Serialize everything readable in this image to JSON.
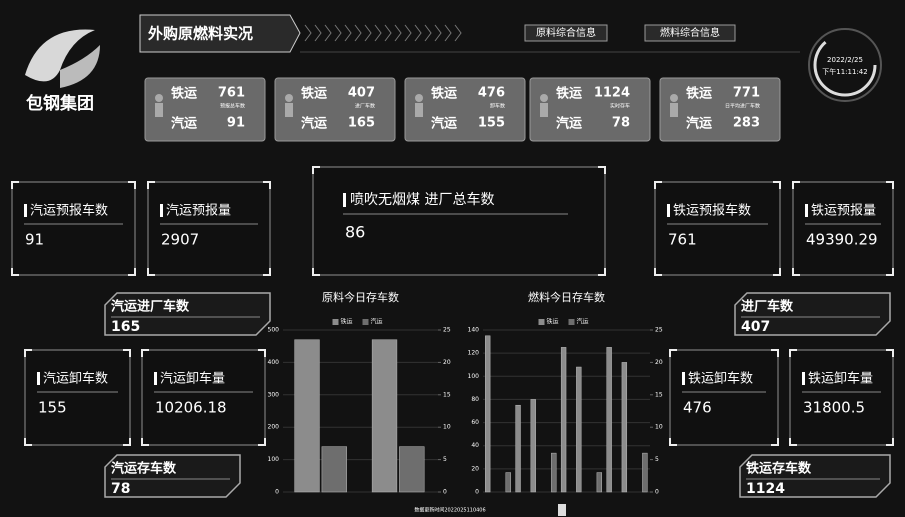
{
  "header": {
    "logo_text": "包钢集团",
    "title": "外购原燃料实况",
    "tabs": [
      "原料综合信息",
      "燃料综合信息"
    ],
    "date": "2022/2/25",
    "time": "下午11:11:42"
  },
  "summary_cards": [
    {
      "rail_label": "铁运",
      "rail_value": 761,
      "caption": "预报总车数",
      "truck_label": "汽运",
      "truck_value": 91
    },
    {
      "rail_label": "铁运",
      "rail_value": 407,
      "caption": "进厂车数",
      "truck_label": "汽运",
      "truck_value": 165
    },
    {
      "rail_label": "铁运",
      "rail_value": 476,
      "caption": "卸车数",
      "truck_label": "汽运",
      "truck_value": 155
    },
    {
      "rail_label": "铁运",
      "rail_value": 1124,
      "caption": "实时存车",
      "truck_label": "汽运",
      "truck_value": 78
    },
    {
      "rail_label": "铁运",
      "rail_value": 771,
      "caption": "日平均进厂车数",
      "truck_label": "汽运",
      "truck_value": 283
    }
  ],
  "panels": [
    {
      "label": "汽运预报车数",
      "value": 91
    },
    {
      "label": "汽运预报量",
      "value": 2907
    },
    {
      "label": "铁运预报车数",
      "value": 761
    },
    {
      "label": "铁运预报量",
      "value": 49390.29
    },
    {
      "label": "汽运卸车数",
      "value": 155
    },
    {
      "label": "汽运卸车量",
      "value": 10206.18
    },
    {
      "label": "铁运卸车数",
      "value": 476
    },
    {
      "label": "铁运卸车量",
      "value": 31800.5
    }
  ],
  "highlight": {
    "label": "喷吹无烟煤 进厂总车数",
    "value": 86
  },
  "tags": [
    {
      "label": "汽运进厂车数",
      "value": 165
    },
    {
      "label": "进厂车数",
      "value": 407
    },
    {
      "label": "汽运存车数",
      "value": 78
    },
    {
      "label": "铁运存车数",
      "value": 1124
    }
  ],
  "charts": [
    {
      "type": "bar",
      "title": "原料今日存车数",
      "categories": [
        null,
        null
      ],
      "series": [
        {
          "name": "铁运",
          "color": "#8c8c8c",
          "values": [
            470,
            470
          ]
        },
        {
          "name": "汽运",
          "color": "#6e6e6e",
          "axis": "y2",
          "values": [
            7,
            7
          ]
        }
      ],
      "ylim": [
        0,
        500
      ],
      "yticks": [
        0,
        100,
        200,
        300,
        400,
        500
      ],
      "y2lim": [
        0,
        25
      ],
      "y2ticks": [
        0,
        5,
        10,
        15,
        20,
        25
      ]
    },
    {
      "type": "bar",
      "title": "燃料今日存车数",
      "categories": [
        null,
        null,
        null,
        null,
        null,
        null,
        null,
        null,
        null,
        null,
        null
      ],
      "series": [
        {
          "name": "铁运",
          "color": "#8c8c8c",
          "values": [
            135,
            null,
            75,
            80,
            null,
            125,
            108,
            null,
            125,
            112,
            null
          ]
        },
        {
          "name": "汽运",
          "color": "#6e6e6e",
          "axis": "y2",
          "values": [
            null,
            3,
            null,
            null,
            6,
            null,
            null,
            3,
            null,
            null,
            6
          ]
        }
      ],
      "ylim": [
        0,
        140
      ],
      "yticks": [
        0,
        20,
        40,
        60,
        80,
        100,
        120,
        140
      ],
      "y2lim": [
        0,
        25
      ],
      "y2ticks": [
        0,
        5,
        10,
        15,
        20,
        25
      ]
    }
  ],
  "footer": "数据更新时间2022025110406"
}
